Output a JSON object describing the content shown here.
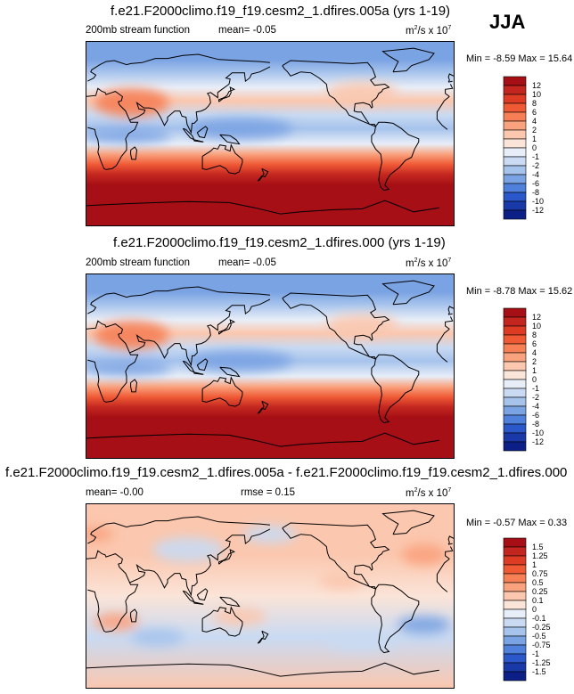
{
  "season": "JJA",
  "chart_data": [
    {
      "type": "heatmap",
      "title": "f.e21.F2000climo.f19_f19.cesm2_1.dfires.005a (yrs 1-19)",
      "variable": "200mb stream function",
      "mean_text": "mean=  -0.05",
      "units_pre": "m",
      "units_sup": "2",
      "units_post": "/s x 10",
      "units_exp": "7",
      "minmax_text": "Min =  -8.59 Max =  15.64",
      "min": -8.59,
      "max": 15.64,
      "levels": [
        "12",
        "10",
        "8",
        "6",
        "4",
        "2",
        "1",
        "0",
        "-1",
        "-2",
        "-4",
        "-6",
        "-8",
        "-10",
        "-12"
      ],
      "colors": [
        "#a50f15",
        "#c3261f",
        "#dd3b24",
        "#ef5a35",
        "#f67f55",
        "#f9a27e",
        "#fbc7ae",
        "#fbe4d8",
        "#e8eef8",
        "#c9daf2",
        "#a6c3ec",
        "#7aa3e3",
        "#4f80dc",
        "#2a57c9",
        "#1a39a8",
        "#0c1f86"
      ],
      "bands": [
        {
          "lat": 90,
          "value": -6
        },
        {
          "lat": 72,
          "value": -5
        },
        {
          "lat": 60,
          "value": -3
        },
        {
          "lat": 45,
          "value": -1
        },
        {
          "lat": 32,
          "value": 1
        },
        {
          "lat": 18,
          "value": -2
        },
        {
          "lat": 5,
          "value": -3
        },
        {
          "lat": -10,
          "value": -1
        },
        {
          "lat": -20,
          "value": 3
        },
        {
          "lat": -30,
          "value": 7
        },
        {
          "lat": -40,
          "value": 11
        },
        {
          "lat": -50,
          "value": 13
        },
        {
          "lat": -90,
          "value": 14
        }
      ],
      "anomalies": [
        {
          "lon": 45,
          "lat": 30,
          "value": 4,
          "rx": 42,
          "ry": 16
        },
        {
          "lon": 150,
          "lat": 5,
          "value": -5,
          "rx": 60,
          "ry": 12
        },
        {
          "lon": 40,
          "lat": -2,
          "value": -5,
          "rx": 50,
          "ry": 8
        },
        {
          "lon": 270,
          "lat": 40,
          "value": 1,
          "rx": 40,
          "ry": 12
        }
      ]
    },
    {
      "type": "heatmap",
      "title": "f.e21.F2000climo.f19_f19.cesm2_1.dfires.000 (yrs 1-19)",
      "variable": "200mb stream function",
      "mean_text": "mean=  -0.05",
      "units_pre": "m",
      "units_sup": "2",
      "units_post": "/s x 10",
      "units_exp": "7",
      "minmax_text": "Min =  -8.78 Max =  15.62",
      "min": -8.78,
      "max": 15.62,
      "levels": [
        "12",
        "10",
        "8",
        "6",
        "4",
        "2",
        "1",
        "0",
        "-1",
        "-2",
        "-4",
        "-6",
        "-8",
        "-10",
        "-12"
      ],
      "colors": [
        "#a50f15",
        "#c3261f",
        "#dd3b24",
        "#ef5a35",
        "#f67f55",
        "#f9a27e",
        "#fbc7ae",
        "#fbe4d8",
        "#e8eef8",
        "#c9daf2",
        "#a6c3ec",
        "#7aa3e3",
        "#4f80dc",
        "#2a57c9",
        "#1a39a8",
        "#0c1f86"
      ],
      "bands": [
        {
          "lat": 90,
          "value": -6
        },
        {
          "lat": 72,
          "value": -5
        },
        {
          "lat": 60,
          "value": -3
        },
        {
          "lat": 45,
          "value": -1
        },
        {
          "lat": 32,
          "value": 1
        },
        {
          "lat": 18,
          "value": -2
        },
        {
          "lat": 5,
          "value": -3
        },
        {
          "lat": -10,
          "value": -1
        },
        {
          "lat": -20,
          "value": 3
        },
        {
          "lat": -30,
          "value": 7
        },
        {
          "lat": -40,
          "value": 11
        },
        {
          "lat": -50,
          "value": 13
        },
        {
          "lat": -90,
          "value": 14
        }
      ],
      "anomalies": [
        {
          "lon": 45,
          "lat": 30,
          "value": 4,
          "rx": 42,
          "ry": 16
        },
        {
          "lon": 150,
          "lat": 5,
          "value": -5,
          "rx": 60,
          "ry": 12
        },
        {
          "lon": 40,
          "lat": -2,
          "value": -5,
          "rx": 50,
          "ry": 8
        },
        {
          "lon": 270,
          "lat": 40,
          "value": 1,
          "rx": 40,
          "ry": 12
        }
      ]
    },
    {
      "type": "heatmap",
      "title": "f.e21.F2000climo.f19_f19.cesm2_1.dfires.005a - f.e21.F2000climo.f19_f19.cesm2_1.dfires.000",
      "mean_text": "mean=  -0.00",
      "rmse_text": "rmse =   0.15",
      "units_pre": "m",
      "units_sup": "2",
      "units_post": "/s x 10",
      "units_exp": "7",
      "minmax_text": "Min =  -0.57 Max =   0.33",
      "min": -0.57,
      "max": 0.33,
      "levels": [
        "1.5",
        "1.25",
        "1",
        "0.75",
        "0.5",
        "0.25",
        "0.1",
        "0",
        "-0.1",
        "-0.25",
        "-0.5",
        "-0.75",
        "-1",
        "-1.25",
        "-1.5"
      ],
      "colors": [
        "#a50f15",
        "#c3261f",
        "#dd3b24",
        "#ef5a35",
        "#f67f55",
        "#f9a27e",
        "#fbc7ae",
        "#fbe4d8",
        "#e8eef8",
        "#c9daf2",
        "#a6c3ec",
        "#7aa3e3",
        "#4f80dc",
        "#2a57c9",
        "#1a39a8",
        "#0c1f86"
      ],
      "bands": [
        {
          "lat": 90,
          "value": 0.15
        },
        {
          "lat": 40,
          "value": 0.1
        },
        {
          "lat": 0,
          "value": 0.05
        },
        {
          "lat": -40,
          "value": -0.15
        },
        {
          "lat": -90,
          "value": 0.1
        }
      ],
      "anomalies": [
        {
          "lon": 100,
          "lat": 45,
          "value": -0.2,
          "rx": 40,
          "ry": 14
        },
        {
          "lon": 180,
          "lat": 60,
          "value": -0.2,
          "rx": 30,
          "ry": 10
        },
        {
          "lon": 30,
          "lat": -25,
          "value": 0.25,
          "rx": 25,
          "ry": 10
        },
        {
          "lon": 70,
          "lat": -40,
          "value": -0.3,
          "rx": 30,
          "ry": 10
        },
        {
          "lon": 150,
          "lat": -20,
          "value": 0.2,
          "rx": 30,
          "ry": 10
        },
        {
          "lon": 250,
          "lat": 15,
          "value": 0.2,
          "rx": 25,
          "ry": 10
        },
        {
          "lon": 330,
          "lat": -28,
          "value": -0.55,
          "rx": 30,
          "ry": 10
        },
        {
          "lon": 330,
          "lat": 40,
          "value": 0.3,
          "rx": 25,
          "ry": 12
        },
        {
          "lon": 270,
          "lat": -45,
          "value": -0.2,
          "rx": 40,
          "ry": 10
        },
        {
          "lon": 10,
          "lat": 60,
          "value": 0.25,
          "rx": 20,
          "ry": 8
        }
      ]
    }
  ]
}
